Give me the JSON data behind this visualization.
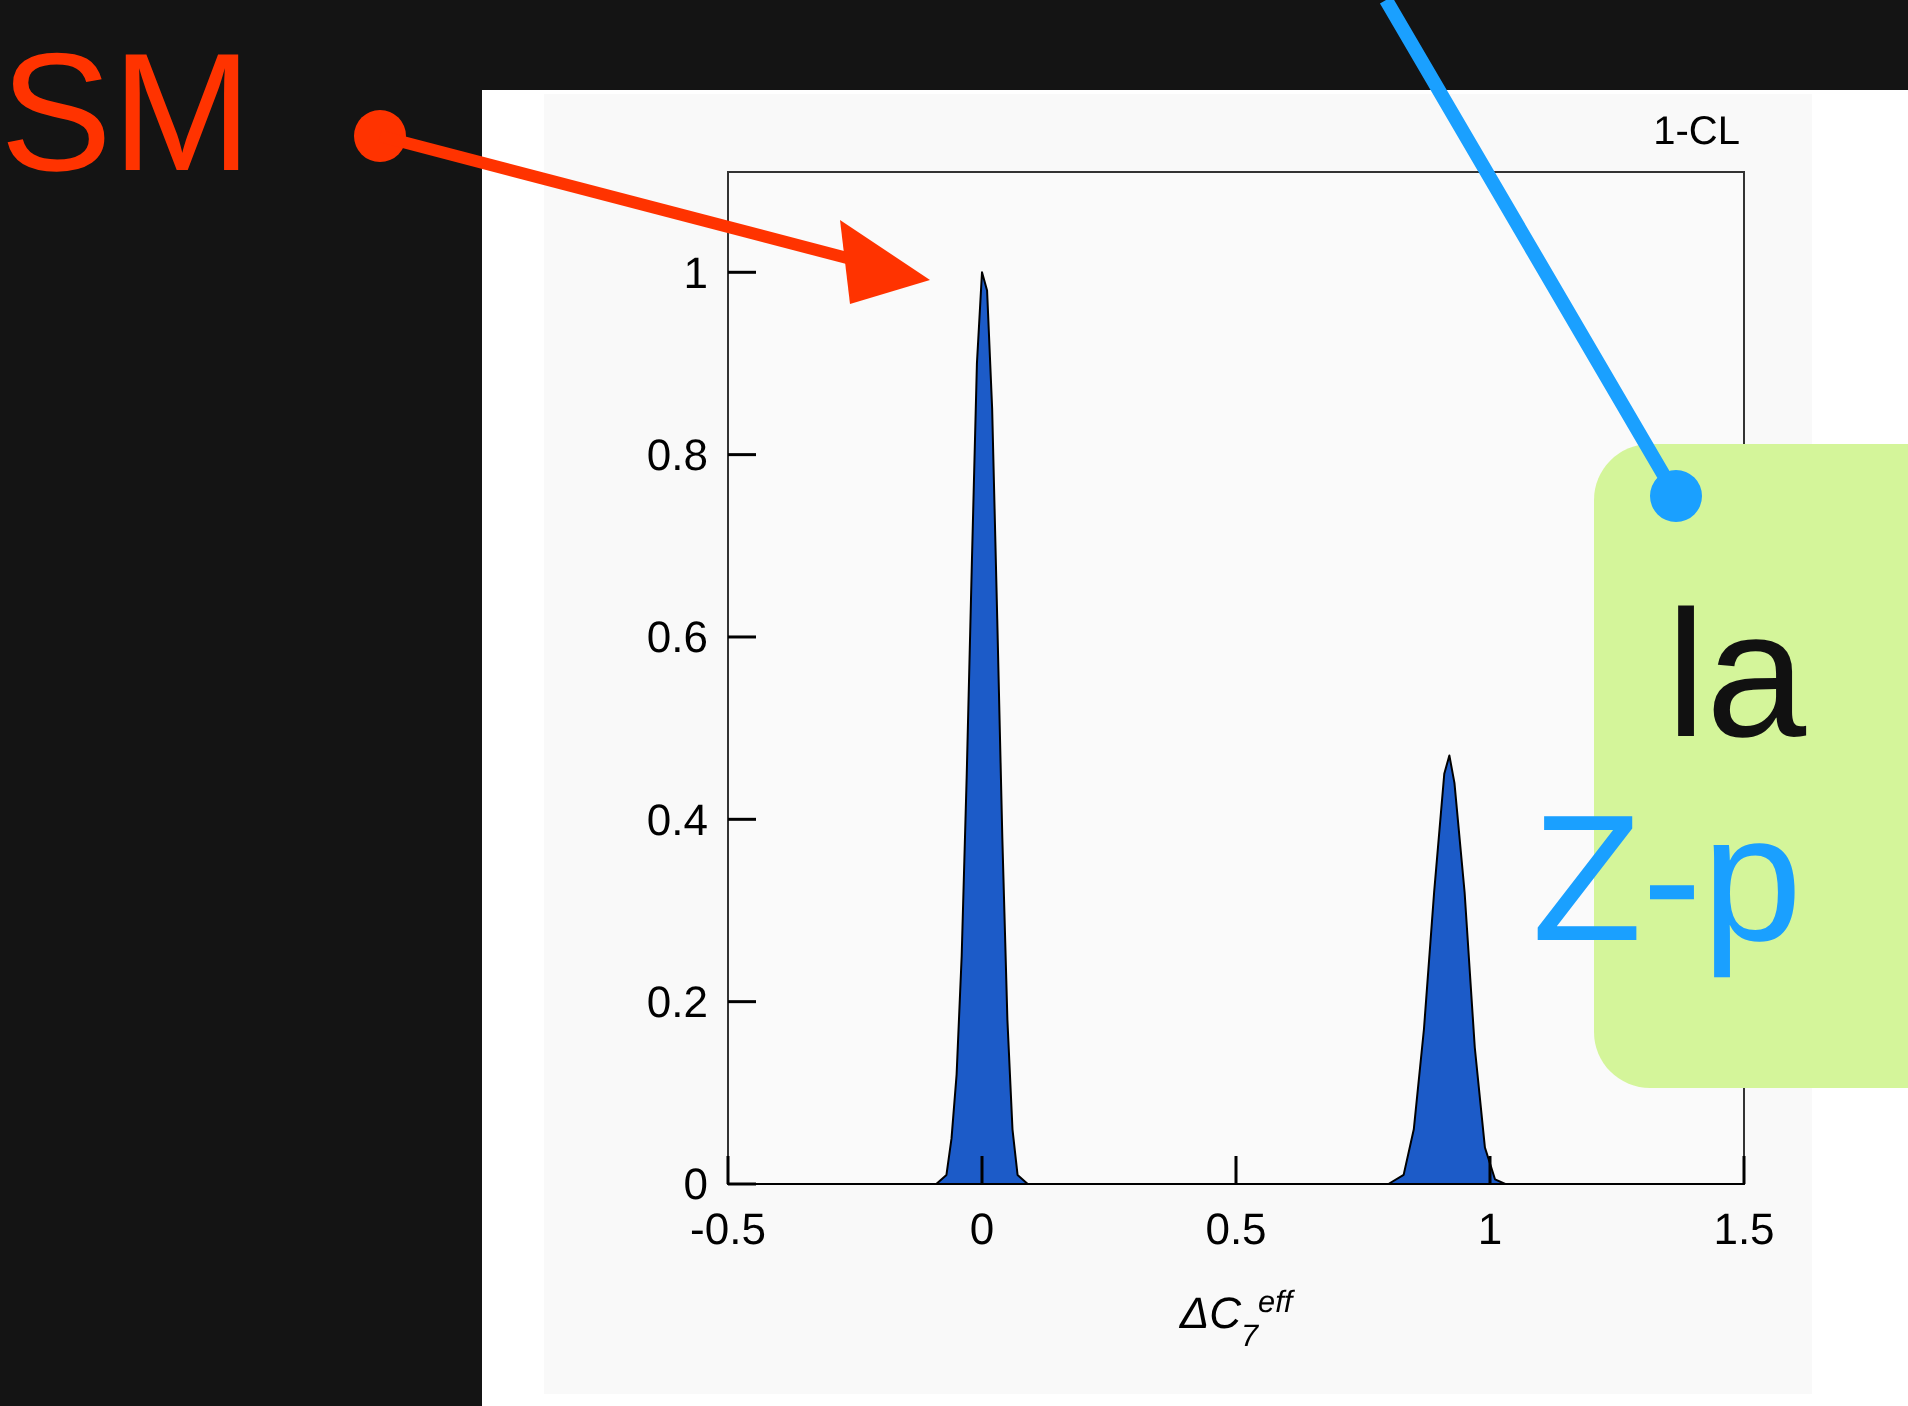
{
  "chart_data": {
    "type": "area",
    "ylabel": "1-CL",
    "xlabel": "ΔC$_{7}$$^{eff}$",
    "xlim": [
      -0.5,
      1.5
    ],
    "xticks": [
      -0.5,
      0,
      0.5,
      1,
      1.5
    ],
    "ylim": [
      0,
      1.11
    ],
    "yticks": [
      0,
      0.2,
      0.4,
      0.6,
      0.8,
      1
    ],
    "series": [
      {
        "color": "#1c5bc8",
        "x": [
          -0.5,
          -0.09,
          -0.07,
          -0.06,
          -0.05,
          -0.04,
          -0.03,
          -0.02,
          -0.01,
          0,
          0.01,
          0.02,
          0.03,
          0.04,
          0.05,
          0.06,
          0.07,
          0.09,
          0.8,
          0.83,
          0.85,
          0.87,
          0.89,
          0.91,
          0.92,
          0.93,
          0.95,
          0.97,
          0.99,
          1.01,
          1.03,
          1.5
        ],
        "values": [
          0,
          0,
          0.01,
          0.05,
          0.12,
          0.25,
          0.45,
          0.68,
          0.9,
          1,
          0.98,
          0.85,
          0.62,
          0.38,
          0.18,
          0.06,
          0.01,
          0,
          0,
          0.01,
          0.06,
          0.17,
          0.32,
          0.45,
          0.47,
          0.44,
          0.32,
          0.15,
          0.04,
          0.005,
          0,
          0
        ]
      }
    ],
    "annotations": [
      "SM",
      "la",
      "Z-p"
    ]
  }
}
